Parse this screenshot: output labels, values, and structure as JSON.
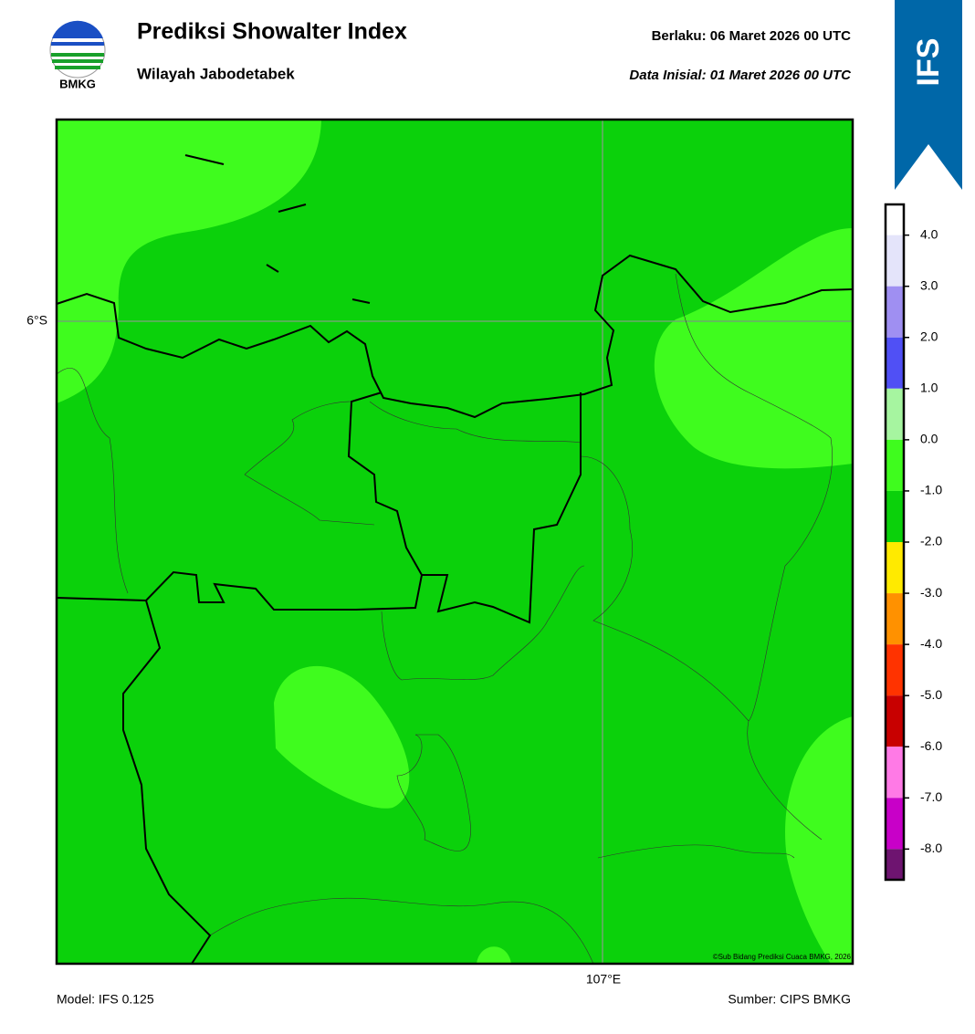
{
  "header": {
    "logo_text": "BMKG",
    "title": "Prediksi Showalter Index",
    "subtitle": "Wilayah Jabodetabek",
    "valid": "Berlaku:  06 Maret 2026 00 UTC",
    "initial": "Data Inisial:  01 Maret 2026 00 UTC",
    "model_badge": "IFS"
  },
  "map": {
    "lat_label": "6°S",
    "lon_label": "107°E",
    "credit": "©Sub Bidang Prediksi Cuaca BMKG, 2026"
  },
  "colorbar": {
    "range": [
      -8.6,
      4.6
    ],
    "ticks": [
      {
        "value": 4,
        "label": "4.0"
      },
      {
        "value": 3,
        "label": "3.0"
      },
      {
        "value": 2,
        "label": "2.0"
      },
      {
        "value": 1,
        "label": "1.0"
      },
      {
        "value": 0,
        "label": "0.0"
      },
      {
        "value": -1,
        "label": "-1.0"
      },
      {
        "value": -2,
        "label": "-2.0"
      },
      {
        "value": -3,
        "label": "-3.0"
      },
      {
        "value": -4,
        "label": "-4.0"
      },
      {
        "value": -5,
        "label": "-5.0"
      },
      {
        "value": -6,
        "label": "-6.0"
      },
      {
        "value": -7,
        "label": "-7.0"
      },
      {
        "value": -8,
        "label": "-8.0"
      }
    ],
    "segments": [
      {
        "from": 4,
        "to": 4.6,
        "color": "#ffffff"
      },
      {
        "from": 3,
        "to": 4,
        "color": "#e4e4fa"
      },
      {
        "from": 2,
        "to": 3,
        "color": "#9f8ff2"
      },
      {
        "from": 1,
        "to": 2,
        "color": "#5050f5"
      },
      {
        "from": 0,
        "to": 1,
        "color": "#a6f5a0"
      },
      {
        "from": -1,
        "to": 0,
        "color": "#3ffc1e"
      },
      {
        "from": -2,
        "to": -1,
        "color": "#0bd10b"
      },
      {
        "from": -3,
        "to": -2,
        "color": "#ffea00"
      },
      {
        "from": -4,
        "to": -3,
        "color": "#ff9100"
      },
      {
        "from": -5,
        "to": -4,
        "color": "#ff3300"
      },
      {
        "from": -6,
        "to": -5,
        "color": "#c80000"
      },
      {
        "from": -7,
        "to": -6,
        "color": "#ff7ae6"
      },
      {
        "from": -8,
        "to": -7,
        "color": "#c800c8"
      },
      {
        "from": -8.6,
        "to": -8,
        "color": "#6e1470"
      }
    ]
  },
  "footer": {
    "model": "Model: IFS 0.125",
    "source": "Sumber: CIPS BMKG"
  }
}
